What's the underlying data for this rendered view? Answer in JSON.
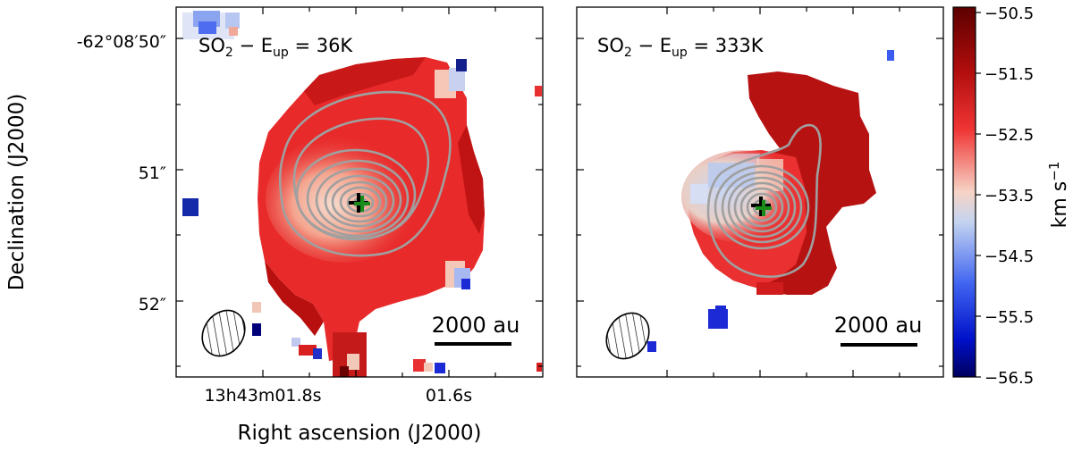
{
  "figure": {
    "y_axis_label": "Declination (J2000)",
    "x_axis_label": "Right ascension (J2000)",
    "y_ticks": [
      "-62°08′50″",
      "51″",
      "52″"
    ],
    "x_ticks": [
      "13h43m01.8s",
      "01.6s"
    ],
    "panels": [
      {
        "molecule": "SO",
        "subscript": "2",
        "sep": " − E",
        "sub_up": "up",
        "value": " = 36K",
        "scalebar": "2000 au"
      },
      {
        "molecule": "SO",
        "subscript": "2",
        "sep": " − E",
        "sub_up": "up",
        "value": " = 333K",
        "scalebar": "2000 au"
      }
    ],
    "colorbar": {
      "unit_main": "km s",
      "unit_exp": "−1",
      "ticks": [
        "−50.5",
        "−51.5",
        "−52.5",
        "−53.5",
        "−54.5",
        "−55.5",
        "−56.5"
      ],
      "colors": [
        "#6b0000",
        "#b51414",
        "#f03030",
        "#f6d2c2",
        "#b8cdf2",
        "#3a5cf0",
        "#00007a"
      ]
    },
    "marker_colors": {
      "black_cross": "#000000",
      "green_cross": "#1a8c1a"
    },
    "contour_color": "#a0a0a0"
  }
}
